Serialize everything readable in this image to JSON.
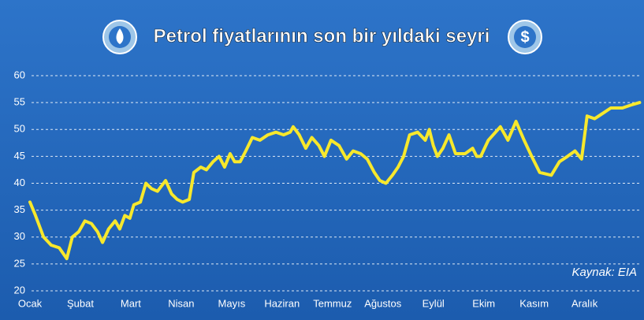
{
  "chart_data": {
    "type": "line",
    "title": "Petrol fiyatlarının son bir yıldaki seyri",
    "annotation": "Kaynak: EIA",
    "x": [
      0,
      0.11,
      0.27,
      0.42,
      0.58,
      0.73,
      0.84,
      0.97,
      1.09,
      1.22,
      1.34,
      1.44,
      1.56,
      1.69,
      1.78,
      1.88,
      1.98,
      2.06,
      2.19,
      2.3,
      2.41,
      2.53,
      2.69,
      2.81,
      2.92,
      3.03,
      3.16,
      3.25,
      3.39,
      3.5,
      3.63,
      3.75,
      3.86,
      3.97,
      4.06,
      4.17,
      4.28,
      4.41,
      4.56,
      4.72,
      4.88,
      5.03,
      5.16,
      5.22,
      5.34,
      5.47,
      5.59,
      5.73,
      5.84,
      5.97,
      6.13,
      6.28,
      6.41,
      6.56,
      6.69,
      6.83,
      6.94,
      7.06,
      7.19,
      7.3,
      7.41,
      7.53,
      7.69,
      7.84,
      7.92,
      8.0,
      8.08,
      8.19,
      8.31,
      8.44,
      8.63,
      8.78,
      8.86,
      8.94,
      9.09,
      9.33,
      9.48,
      9.64,
      9.8,
      9.95,
      10.11,
      10.34,
      10.5,
      10.66,
      10.81,
      10.94,
      11.05,
      11.2,
      11.36,
      11.52,
      11.75,
      11.91,
      12.09
    ],
    "series": [
      {
        "color": "#f7e82c",
        "values": [
          36.5,
          34,
          30,
          28.5,
          28,
          26,
          30,
          31,
          33,
          32.5,
          31,
          29,
          31.5,
          33,
          31.5,
          34,
          33.5,
          36,
          36.5,
          40,
          39,
          38.5,
          40.5,
          38,
          37,
          36.5,
          37,
          42,
          43,
          42.5,
          44,
          45,
          43,
          45.5,
          44,
          44,
          46,
          48.5,
          48,
          49,
          49.5,
          49,
          49.5,
          50.5,
          49,
          46.5,
          48.5,
          47,
          45,
          48,
          47,
          44.5,
          46,
          45.5,
          44.5,
          42,
          40.5,
          40,
          41.5,
          43,
          45,
          49,
          49.5,
          48,
          50,
          47,
          45,
          46.5,
          49,
          45.5,
          45.5,
          46.5,
          45,
          45,
          48,
          50.5,
          48,
          51.5,
          48,
          45,
          42,
          41.5,
          44,
          45,
          46,
          44.5,
          52.5,
          52,
          53,
          54,
          54,
          54.5,
          55
        ]
      }
    ],
    "xlim": [
      0,
      12.1
    ],
    "xticks": [
      {
        "value": 0,
        "label": "Ocak"
      },
      {
        "value": 1,
        "label": "Şubat"
      },
      {
        "value": 2,
        "label": "Mart"
      },
      {
        "value": 3,
        "label": "Nisan"
      },
      {
        "value": 4,
        "label": "Mayıs"
      },
      {
        "value": 5,
        "label": "Haziran"
      },
      {
        "value": 6,
        "label": "Temmuz"
      },
      {
        "value": 7,
        "label": "Ağustos"
      },
      {
        "value": 8,
        "label": "Eylül"
      },
      {
        "value": 9,
        "label": "Ekim"
      },
      {
        "value": 10,
        "label": "Kasım"
      },
      {
        "value": 11,
        "label": "Aralık"
      }
    ],
    "ylim": [
      20,
      60
    ],
    "yticks": [
      20,
      25,
      30,
      35,
      40,
      45,
      50,
      55,
      60
    ],
    "grid": true
  }
}
